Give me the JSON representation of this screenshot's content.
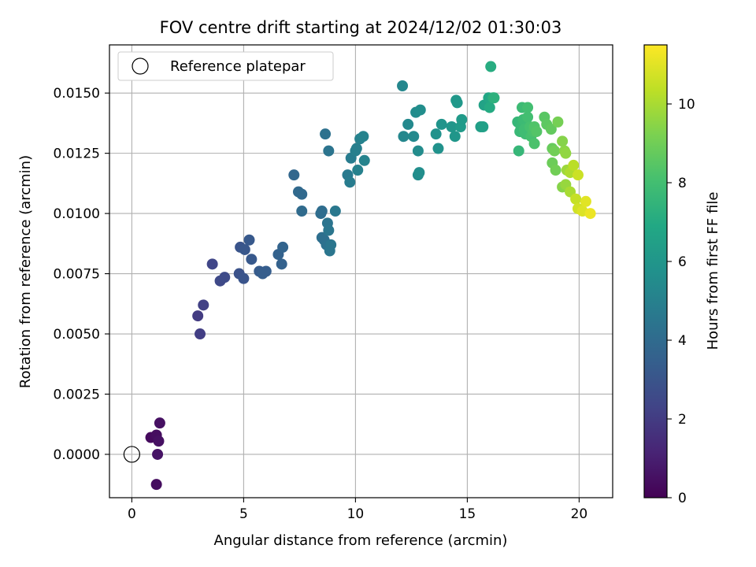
{
  "chart_data": {
    "type": "scatter",
    "title": "FOV centre drift starting at 2024/12/02 01:30:03",
    "xlabel": "Angular distance from reference (arcmin)",
    "ylabel": "Rotation from reference (arcmin)",
    "xlim": [
      -1.0,
      21.5
    ],
    "ylim": [
      -0.0018,
      0.017
    ],
    "xticks": [
      0,
      5,
      10,
      15,
      20
    ],
    "xtick_labels": [
      "0",
      "5",
      "10",
      "15",
      "20"
    ],
    "yticks": [
      0.0,
      0.0025,
      0.005,
      0.0075,
      0.01,
      0.0125,
      0.015
    ],
    "ytick_labels": [
      "0.0000",
      "0.0025",
      "0.0050",
      "0.0075",
      "0.0100",
      "0.0125",
      "0.0150"
    ],
    "grid": true,
    "legend": {
      "placement": "upper-left",
      "label": "Reference platepar"
    },
    "reference_point": {
      "x": 0,
      "y": 0
    },
    "colorbar": {
      "label": "Hours from first FF file",
      "range": [
        0,
        11.5
      ],
      "ticks": [
        0,
        2,
        4,
        6,
        8,
        10
      ],
      "tick_labels": [
        "0",
        "2",
        "4",
        "6",
        "8",
        "10"
      ],
      "colormap": "viridis"
    },
    "series": [
      {
        "points": [
          {
            "x": 0.85,
            "y": 0.0007,
            "c": 0.3
          },
          {
            "x": 1.1,
            "y": 0.0008,
            "c": 0.4
          },
          {
            "x": 1.25,
            "y": 0.0013,
            "c": 0.5
          },
          {
            "x": 1.2,
            "y": 0.00055,
            "c": 0.5
          },
          {
            "x": 1.15,
            "y": 0.0,
            "c": 0.6
          },
          {
            "x": 1.1,
            "y": -0.00125,
            "c": 0.4
          },
          {
            "x": 2.95,
            "y": 0.00575,
            "c": 2.0
          },
          {
            "x": 3.05,
            "y": 0.005,
            "c": 2.1
          },
          {
            "x": 3.2,
            "y": 0.0062,
            "c": 2.2
          },
          {
            "x": 3.6,
            "y": 0.0079,
            "c": 2.4
          },
          {
            "x": 3.95,
            "y": 0.0072,
            "c": 2.5
          },
          {
            "x": 4.15,
            "y": 0.00735,
            "c": 2.6
          },
          {
            "x": 4.8,
            "y": 0.0075,
            "c": 2.9
          },
          {
            "x": 4.85,
            "y": 0.0086,
            "c": 3.0
          },
          {
            "x": 5.0,
            "y": 0.0073,
            "c": 3.0
          },
          {
            "x": 5.05,
            "y": 0.0085,
            "c": 3.1
          },
          {
            "x": 5.25,
            "y": 0.0089,
            "c": 3.2
          },
          {
            "x": 5.35,
            "y": 0.0081,
            "c": 3.2
          },
          {
            "x": 5.7,
            "y": 0.0076,
            "c": 3.3
          },
          {
            "x": 5.85,
            "y": 0.0075,
            "c": 3.4
          },
          {
            "x": 6.0,
            "y": 0.0076,
            "c": 3.4
          },
          {
            "x": 6.55,
            "y": 0.0083,
            "c": 3.6
          },
          {
            "x": 6.7,
            "y": 0.0079,
            "c": 3.6
          },
          {
            "x": 6.75,
            "y": 0.0086,
            "c": 3.7
          },
          {
            "x": 7.25,
            "y": 0.0116,
            "c": 3.8
          },
          {
            "x": 7.45,
            "y": 0.0109,
            "c": 3.9
          },
          {
            "x": 7.6,
            "y": 0.0108,
            "c": 3.9
          },
          {
            "x": 7.6,
            "y": 0.0101,
            "c": 4.0
          },
          {
            "x": 8.45,
            "y": 0.01,
            "c": 4.1
          },
          {
            "x": 8.5,
            "y": 0.0101,
            "c": 4.1
          },
          {
            "x": 8.5,
            "y": 0.009,
            "c": 4.2
          },
          {
            "x": 8.6,
            "y": 0.0089,
            "c": 4.2
          },
          {
            "x": 8.65,
            "y": 0.0133,
            "c": 4.3
          },
          {
            "x": 8.7,
            "y": 0.0087,
            "c": 4.3
          },
          {
            "x": 8.75,
            "y": 0.0096,
            "c": 4.4
          },
          {
            "x": 8.8,
            "y": 0.0126,
            "c": 4.4
          },
          {
            "x": 8.8,
            "y": 0.0093,
            "c": 4.5
          },
          {
            "x": 8.85,
            "y": 0.00845,
            "c": 4.5
          },
          {
            "x": 8.9,
            "y": 0.0087,
            "c": 4.5
          },
          {
            "x": 9.1,
            "y": 0.0101,
            "c": 4.6
          },
          {
            "x": 9.65,
            "y": 0.0116,
            "c": 4.7
          },
          {
            "x": 9.75,
            "y": 0.0113,
            "c": 4.8
          },
          {
            "x": 9.8,
            "y": 0.0123,
            "c": 4.8
          },
          {
            "x": 10.0,
            "y": 0.0126,
            "c": 4.9
          },
          {
            "x": 10.05,
            "y": 0.0127,
            "c": 4.9
          },
          {
            "x": 10.1,
            "y": 0.0118,
            "c": 5.0
          },
          {
            "x": 10.2,
            "y": 0.0131,
            "c": 5.0
          },
          {
            "x": 10.35,
            "y": 0.0132,
            "c": 5.1
          },
          {
            "x": 10.4,
            "y": 0.0122,
            "c": 5.1
          },
          {
            "x": 12.1,
            "y": 0.0153,
            "c": 5.3
          },
          {
            "x": 12.15,
            "y": 0.0132,
            "c": 5.3
          },
          {
            "x": 12.35,
            "y": 0.0137,
            "c": 5.4
          },
          {
            "x": 12.6,
            "y": 0.0132,
            "c": 5.4
          },
          {
            "x": 12.7,
            "y": 0.0142,
            "c": 5.5
          },
          {
            "x": 12.8,
            "y": 0.0126,
            "c": 5.5
          },
          {
            "x": 12.8,
            "y": 0.0116,
            "c": 5.5
          },
          {
            "x": 12.85,
            "y": 0.0117,
            "c": 5.6
          },
          {
            "x": 12.9,
            "y": 0.0143,
            "c": 5.6
          },
          {
            "x": 13.6,
            "y": 0.0133,
            "c": 5.8
          },
          {
            "x": 13.7,
            "y": 0.0127,
            "c": 5.8
          },
          {
            "x": 13.85,
            "y": 0.0137,
            "c": 5.9
          },
          {
            "x": 14.3,
            "y": 0.0136,
            "c": 6.0
          },
          {
            "x": 14.45,
            "y": 0.0132,
            "c": 6.0
          },
          {
            "x": 14.5,
            "y": 0.0147,
            "c": 6.1
          },
          {
            "x": 14.55,
            "y": 0.0146,
            "c": 6.1
          },
          {
            "x": 14.7,
            "y": 0.0136,
            "c": 6.2
          },
          {
            "x": 14.75,
            "y": 0.0139,
            "c": 6.2
          },
          {
            "x": 15.6,
            "y": 0.0136,
            "c": 6.4
          },
          {
            "x": 15.7,
            "y": 0.0136,
            "c": 6.5
          },
          {
            "x": 15.75,
            "y": 0.0145,
            "c": 6.6
          },
          {
            "x": 15.95,
            "y": 0.0148,
            "c": 6.8
          },
          {
            "x": 16.0,
            "y": 0.0144,
            "c": 7.0
          },
          {
            "x": 16.05,
            "y": 0.0161,
            "c": 7.1
          },
          {
            "x": 16.15,
            "y": 0.0148,
            "c": 7.2
          },
          {
            "x": 16.2,
            "y": 0.0148,
            "c": 7.3
          },
          {
            "x": 17.25,
            "y": 0.0138,
            "c": 7.6
          },
          {
            "x": 17.3,
            "y": 0.0126,
            "c": 7.6
          },
          {
            "x": 17.35,
            "y": 0.0134,
            "c": 7.7
          },
          {
            "x": 17.4,
            "y": 0.0136,
            "c": 7.7
          },
          {
            "x": 17.45,
            "y": 0.0144,
            "c": 7.8
          },
          {
            "x": 17.5,
            "y": 0.0139,
            "c": 7.8
          },
          {
            "x": 17.55,
            "y": 0.0135,
            "c": 7.9
          },
          {
            "x": 17.6,
            "y": 0.0133,
            "c": 7.9
          },
          {
            "x": 17.7,
            "y": 0.0144,
            "c": 8.0
          },
          {
            "x": 17.7,
            "y": 0.014,
            "c": 8.0
          },
          {
            "x": 17.8,
            "y": 0.0136,
            "c": 8.1
          },
          {
            "x": 17.85,
            "y": 0.0132,
            "c": 8.1
          },
          {
            "x": 17.95,
            "y": 0.0134,
            "c": 8.2
          },
          {
            "x": 18.0,
            "y": 0.0129,
            "c": 8.2
          },
          {
            "x": 18.0,
            "y": 0.0136,
            "c": 8.3
          },
          {
            "x": 18.1,
            "y": 0.0134,
            "c": 8.4
          },
          {
            "x": 18.45,
            "y": 0.014,
            "c": 8.5
          },
          {
            "x": 18.55,
            "y": 0.0137,
            "c": 8.6
          },
          {
            "x": 18.75,
            "y": 0.0135,
            "c": 8.7
          },
          {
            "x": 18.8,
            "y": 0.0127,
            "c": 8.8
          },
          {
            "x": 18.8,
            "y": 0.0121,
            "c": 8.9
          },
          {
            "x": 18.9,
            "y": 0.0126,
            "c": 9.0
          },
          {
            "x": 18.95,
            "y": 0.0118,
            "c": 9.0
          },
          {
            "x": 19.05,
            "y": 0.0138,
            "c": 9.1
          },
          {
            "x": 19.25,
            "y": 0.0111,
            "c": 9.4
          },
          {
            "x": 19.25,
            "y": 0.013,
            "c": 9.4
          },
          {
            "x": 19.35,
            "y": 0.0126,
            "c": 9.5
          },
          {
            "x": 19.4,
            "y": 0.0125,
            "c": 9.6
          },
          {
            "x": 19.4,
            "y": 0.0112,
            "c": 9.7
          },
          {
            "x": 19.45,
            "y": 0.0118,
            "c": 9.8
          },
          {
            "x": 19.6,
            "y": 0.0109,
            "c": 10.0
          },
          {
            "x": 19.6,
            "y": 0.0117,
            "c": 10.1
          },
          {
            "x": 19.75,
            "y": 0.012,
            "c": 10.3
          },
          {
            "x": 19.85,
            "y": 0.0106,
            "c": 10.5
          },
          {
            "x": 19.95,
            "y": 0.0116,
            "c": 10.6
          },
          {
            "x": 19.95,
            "y": 0.0102,
            "c": 10.7
          },
          {
            "x": 20.15,
            "y": 0.0101,
            "c": 10.9
          },
          {
            "x": 20.3,
            "y": 0.0105,
            "c": 11.0
          },
          {
            "x": 20.5,
            "y": 0.01,
            "c": 11.2
          }
        ]
      }
    ]
  }
}
